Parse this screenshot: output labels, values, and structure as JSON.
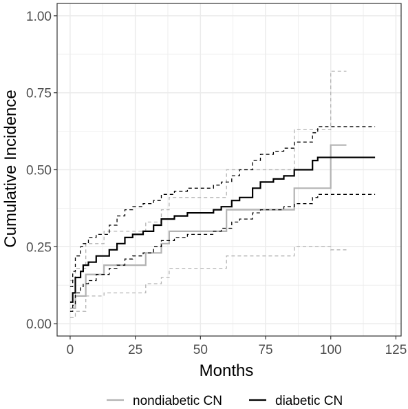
{
  "chart_data": {
    "type": "line",
    "xlabel": "Months",
    "ylabel": "Cumulative Incidence",
    "xlim": [
      -5,
      127
    ],
    "ylim": [
      -0.04,
      1.04
    ],
    "x_ticks": [
      0,
      25,
      50,
      75,
      100,
      125
    ],
    "y_ticks": [
      0.0,
      0.25,
      0.5,
      0.75,
      1.0
    ],
    "x_tick_labels": [
      "0",
      "25",
      "50",
      "75",
      "100",
      "125"
    ],
    "y_tick_labels": [
      "0.00",
      "0.25",
      "0.50",
      "0.75",
      "1.00"
    ],
    "grid": true,
    "legend_position": "bottom",
    "colors": {
      "nondiabetic": "#b3b3b3",
      "diabetic": "#000000",
      "grid": "#ebebeb",
      "panel_border": "#333333"
    },
    "series": [
      {
        "name": "nondiabetic CN",
        "style": "solid",
        "points": [
          [
            0,
            0.05
          ],
          [
            2,
            0.08
          ],
          [
            2,
            0.09
          ],
          [
            6,
            0.09
          ],
          [
            6,
            0.16
          ],
          [
            13,
            0.16
          ],
          [
            13,
            0.19
          ],
          [
            29,
            0.19
          ],
          [
            29,
            0.23
          ],
          [
            35,
            0.23
          ],
          [
            35,
            0.26
          ],
          [
            38,
            0.26
          ],
          [
            38,
            0.3
          ],
          [
            60,
            0.3
          ],
          [
            60,
            0.37
          ],
          [
            86,
            0.37
          ],
          [
            86,
            0.44
          ],
          [
            100,
            0.44
          ],
          [
            100,
            0.58
          ],
          [
            106,
            0.58
          ]
        ]
      },
      {
        "name": "nondiabetic CN upper 95% CI",
        "style": "dashed",
        "points": [
          [
            0,
            0.14
          ],
          [
            2,
            0.16
          ],
          [
            2,
            0.18
          ],
          [
            6,
            0.18
          ],
          [
            6,
            0.26
          ],
          [
            13,
            0.26
          ],
          [
            13,
            0.3
          ],
          [
            29,
            0.3
          ],
          [
            29,
            0.33
          ],
          [
            35,
            0.33
          ],
          [
            35,
            0.37
          ],
          [
            38,
            0.37
          ],
          [
            38,
            0.41
          ],
          [
            60,
            0.41
          ],
          [
            60,
            0.5
          ],
          [
            86,
            0.5
          ],
          [
            86,
            0.63
          ],
          [
            100,
            0.63
          ],
          [
            100,
            0.82
          ],
          [
            106,
            0.82
          ]
        ]
      },
      {
        "name": "nondiabetic CN lower 95% CI",
        "style": "dashed",
        "points": [
          [
            0,
            0.02
          ],
          [
            2,
            0.03
          ],
          [
            2,
            0.04
          ],
          [
            6,
            0.04
          ],
          [
            6,
            0.09
          ],
          [
            13,
            0.09
          ],
          [
            13,
            0.1
          ],
          [
            29,
            0.1
          ],
          [
            29,
            0.13
          ],
          [
            35,
            0.13
          ],
          [
            35,
            0.15
          ],
          [
            38,
            0.15
          ],
          [
            38,
            0.18
          ],
          [
            60,
            0.18
          ],
          [
            60,
            0.22
          ],
          [
            86,
            0.22
          ],
          [
            86,
            0.25
          ],
          [
            100,
            0.25
          ],
          [
            100,
            0.24
          ],
          [
            106,
            0.24
          ]
        ]
      },
      {
        "name": "diabetic CN",
        "style": "solid",
        "points": [
          [
            0,
            0.07
          ],
          [
            1,
            0.1
          ],
          [
            2,
            0.15
          ],
          [
            4,
            0.17
          ],
          [
            5,
            0.19
          ],
          [
            7,
            0.2
          ],
          [
            10,
            0.22
          ],
          [
            15,
            0.24
          ],
          [
            18,
            0.26
          ],
          [
            21,
            0.28
          ],
          [
            24,
            0.29
          ],
          [
            28,
            0.3
          ],
          [
            32,
            0.32
          ],
          [
            35,
            0.34
          ],
          [
            40,
            0.35
          ],
          [
            45,
            0.36
          ],
          [
            55,
            0.37
          ],
          [
            58,
            0.38
          ],
          [
            62,
            0.4
          ],
          [
            65,
            0.41
          ],
          [
            70,
            0.44
          ],
          [
            73,
            0.46
          ],
          [
            78,
            0.47
          ],
          [
            82,
            0.48
          ],
          [
            86,
            0.5
          ],
          [
            93,
            0.53
          ],
          [
            95,
            0.54
          ],
          [
            117,
            0.54
          ]
        ]
      },
      {
        "name": "diabetic CN upper 95% CI",
        "style": "dashed",
        "points": [
          [
            0,
            0.12
          ],
          [
            1,
            0.17
          ],
          [
            2,
            0.22
          ],
          [
            4,
            0.25
          ],
          [
            5,
            0.26
          ],
          [
            7,
            0.28
          ],
          [
            10,
            0.29
          ],
          [
            15,
            0.32
          ],
          [
            18,
            0.35
          ],
          [
            21,
            0.37
          ],
          [
            24,
            0.38
          ],
          [
            28,
            0.39
          ],
          [
            32,
            0.4
          ],
          [
            35,
            0.42
          ],
          [
            40,
            0.43
          ],
          [
            45,
            0.44
          ],
          [
            55,
            0.45
          ],
          [
            58,
            0.46
          ],
          [
            62,
            0.48
          ],
          [
            65,
            0.5
          ],
          [
            70,
            0.53
          ],
          [
            73,
            0.55
          ],
          [
            78,
            0.56
          ],
          [
            82,
            0.57
          ],
          [
            86,
            0.59
          ],
          [
            93,
            0.62
          ],
          [
            95,
            0.64
          ],
          [
            117,
            0.64
          ]
        ]
      },
      {
        "name": "diabetic CN lower 95% CI",
        "style": "dashed",
        "points": [
          [
            0,
            0.04
          ],
          [
            1,
            0.06
          ],
          [
            2,
            0.1
          ],
          [
            4,
            0.12
          ],
          [
            5,
            0.13
          ],
          [
            7,
            0.14
          ],
          [
            10,
            0.16
          ],
          [
            15,
            0.18
          ],
          [
            18,
            0.19
          ],
          [
            21,
            0.21
          ],
          [
            24,
            0.22
          ],
          [
            28,
            0.23
          ],
          [
            32,
            0.25
          ],
          [
            35,
            0.27
          ],
          [
            40,
            0.28
          ],
          [
            45,
            0.29
          ],
          [
            55,
            0.3
          ],
          [
            58,
            0.31
          ],
          [
            62,
            0.33
          ],
          [
            65,
            0.34
          ],
          [
            70,
            0.36
          ],
          [
            73,
            0.37
          ],
          [
            78,
            0.37
          ],
          [
            82,
            0.38
          ],
          [
            86,
            0.39
          ],
          [
            93,
            0.41
          ],
          [
            95,
            0.42
          ],
          [
            117,
            0.42
          ]
        ]
      }
    ]
  },
  "legend": {
    "items": [
      {
        "label": "nondiabetic CN",
        "color": "#b3b3b3"
      },
      {
        "label": "diabetic CN",
        "color": "#000000"
      }
    ]
  }
}
